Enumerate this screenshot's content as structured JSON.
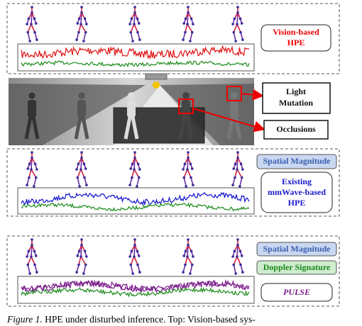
{
  "top": {
    "label": [
      "Vision-based",
      "HPE"
    ]
  },
  "scene": {
    "light": [
      "Light",
      "Mutation"
    ],
    "occlusion": "Occlusions"
  },
  "middle": {
    "tag": "Spatial Magnitude",
    "label": [
      "Existing",
      "mmWave-based",
      "HPE"
    ]
  },
  "bottom": {
    "tags": [
      "Spatial Magnitude",
      "Doppler Signature"
    ],
    "label": "PULSE"
  },
  "caption": {
    "prefix": "Figure 1.",
    "text": "HPE under disturbed inference. Top: Vision-based sys-"
  }
}
